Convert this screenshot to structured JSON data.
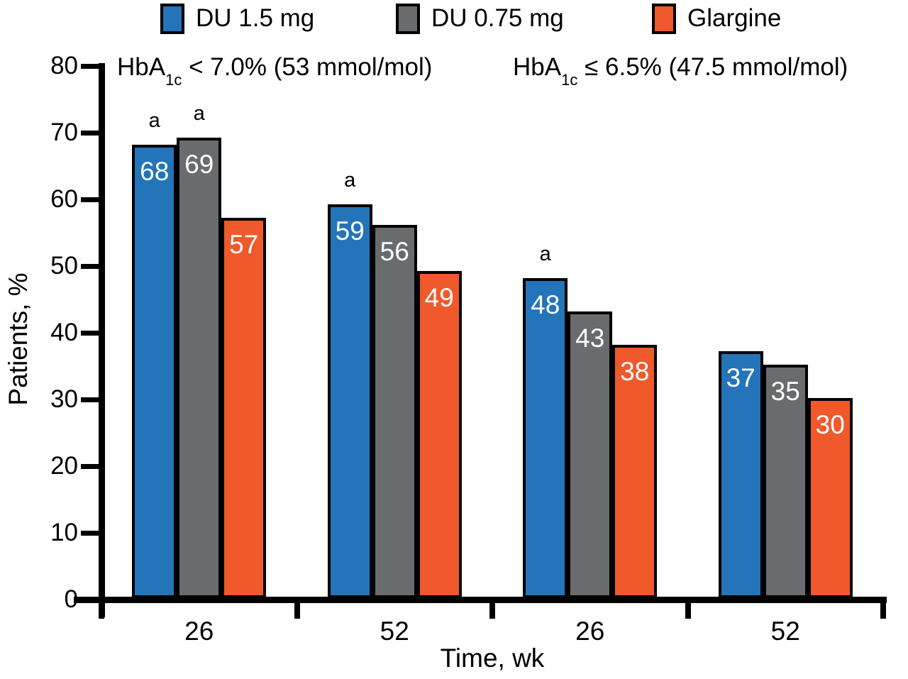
{
  "legend": [
    {
      "label": "DU 1.5 mg",
      "color": "#2374B8"
    },
    {
      "label": "DU 0.75 mg",
      "color": "#6A6B6D"
    },
    {
      "label": "Glargine",
      "color": "#F0592B"
    }
  ],
  "panel_headers": [
    {
      "prefix": "HbA",
      "sub": "1c",
      "rest": " < 7.0% (53 mmol/mol)"
    },
    {
      "prefix": "HbA",
      "sub": "1c",
      "rest": " ≤ 6.5% (47.5 mmol/mol)"
    }
  ],
  "chart_data": {
    "type": "bar",
    "title": "",
    "ylabel": "Patients, %",
    "xlabel": "Time, wk",
    "ylim": [
      0,
      80
    ],
    "yticks": [
      0,
      10,
      20,
      30,
      40,
      50,
      60,
      70,
      80
    ],
    "categories": [
      "26",
      "52",
      "26",
      "52"
    ],
    "series": [
      {
        "name": "DU 1.5 mg",
        "color": "#2374B8",
        "values": [
          68,
          59,
          48,
          37
        ],
        "annotated": [
          true,
          true,
          true,
          false
        ]
      },
      {
        "name": "DU 0.75 mg",
        "color": "#6A6B6D",
        "values": [
          69,
          56,
          43,
          35
        ],
        "annotated": [
          true,
          false,
          false,
          false
        ]
      },
      {
        "name": "Glargine",
        "color": "#F0592B",
        "values": [
          57,
          49,
          38,
          30
        ],
        "annotated": [
          false,
          false,
          false,
          false
        ]
      }
    ],
    "annotation_symbol": "a",
    "grid": false,
    "legend_position": "top",
    "bar_value_label_color": "#FFFFFF",
    "axis_color": "#000000"
  }
}
